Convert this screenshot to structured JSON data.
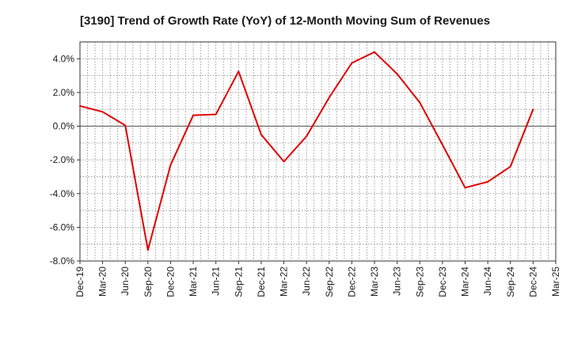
{
  "chart_data": {
    "type": "line",
    "title": "[3190]  Trend of Growth Rate (YoY) of 12-Month Moving Sum of Revenues",
    "xlabel": "",
    "ylabel": "",
    "x_tick_labels": [
      "Dec-19",
      "Mar-20",
      "Jun-20",
      "Sep-20",
      "Dec-20",
      "Mar-21",
      "Jun-21",
      "Sep-21",
      "Dec-21",
      "Mar-22",
      "Jun-22",
      "Sep-22",
      "Dec-22",
      "Mar-23",
      "Jun-23",
      "Sep-23",
      "Dec-23",
      "Mar-24",
      "Jun-24",
      "Sep-24",
      "Dec-24",
      "Mar-25"
    ],
    "y_tick_labels": [
      "4.0%",
      "2.0%",
      "0.0%",
      "-2.0%",
      "-4.0%",
      "-6.0%",
      "-8.0%"
    ],
    "y_ticks": [
      4,
      2,
      0,
      -2,
      -4,
      -6,
      -8
    ],
    "ylim": [
      -8,
      5
    ],
    "grid": true,
    "zero_line": true,
    "series": [
      {
        "color": "#e00000",
        "x": [
          "Dec-19",
          "Mar-20",
          "Jun-20",
          "Sep-20",
          "Dec-20",
          "Mar-21",
          "Jun-21",
          "Sep-21",
          "Dec-21",
          "Mar-22",
          "Jun-22",
          "Sep-22",
          "Dec-22",
          "Mar-23",
          "Jun-23",
          "Sep-23",
          "Dec-23",
          "Mar-24",
          "Jun-24",
          "Sep-24",
          "Dec-24"
        ],
        "values": [
          1.2,
          0.85,
          0.05,
          -7.35,
          -2.3,
          0.65,
          0.7,
          3.25,
          -0.5,
          -2.1,
          -0.6,
          1.7,
          3.75,
          4.4,
          3.1,
          1.4,
          -1.1,
          -3.65,
          -3.3,
          -2.4,
          1.0
        ]
      }
    ]
  }
}
